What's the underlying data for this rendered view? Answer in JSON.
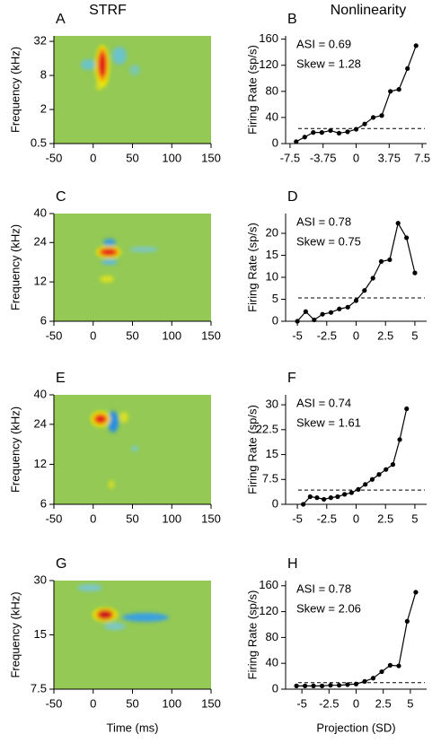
{
  "chart_data": [
    {
      "type": "heatmap",
      "panel": "A",
      "title": "STRF",
      "ylabel": "Frequency (kHz)",
      "ylog": true,
      "xlim": [
        -50,
        150
      ],
      "xticks": [
        -50,
        0,
        50,
        100,
        150
      ],
      "ylim": [
        0.5,
        40
      ],
      "yticks": [
        0.5,
        2,
        8,
        32
      ]
    },
    {
      "type": "line",
      "panel": "B",
      "title": "Nonlinearity",
      "ylabel": "Firing Rate (sp/s)",
      "annotations": [
        "ASI = 0.69",
        "Skew = 1.28"
      ],
      "xlim": [
        -8,
        8
      ],
      "xticks": [
        -7.5,
        -3.75,
        0,
        3.75,
        7.5
      ],
      "ylim": [
        0,
        165
      ],
      "yticks": [
        0,
        40,
        80,
        120,
        160
      ],
      "baseline": 23,
      "color": "#000000",
      "x": [
        -6.8,
        -5.83,
        -4.86,
        -3.89,
        -2.91,
        -1.94,
        -0.97,
        0,
        0.97,
        1.94,
        2.91,
        3.89,
        4.86,
        5.83,
        6.8
      ],
      "values": [
        3,
        10,
        17,
        17,
        20,
        16,
        18,
        22,
        30,
        40,
        43,
        80,
        83,
        115,
        150
      ]
    },
    {
      "type": "heatmap",
      "panel": "C",
      "ylabel": "Frequency (kHz)",
      "ylog": true,
      "xlim": [
        -50,
        150
      ],
      "xticks": [
        -50,
        0,
        50,
        100,
        150
      ],
      "ylim": [
        6,
        40
      ],
      "yticks": [
        6,
        12,
        24,
        40
      ]
    },
    {
      "type": "line",
      "panel": "D",
      "ylabel": "Firing Rate (sp/s)",
      "annotations": [
        "ASI = 0.78",
        "Skew = 0.75"
      ],
      "xlim": [
        -6,
        6
      ],
      "xticks": [
        -5,
        -2.5,
        0,
        2.5,
        5
      ],
      "ylim": [
        0,
        24.5
      ],
      "yticks": [
        0,
        5,
        10,
        15,
        20
      ],
      "baseline": 5.3,
      "color": "#000000",
      "x": [
        -5,
        -4.29,
        -3.57,
        -2.86,
        -2.14,
        -1.43,
        -0.71,
        0,
        0.71,
        1.43,
        2.14,
        2.86,
        3.57,
        4.29,
        5
      ],
      "values": [
        0,
        2.2,
        0.3,
        1.6,
        2,
        2.8,
        3.2,
        4.7,
        7,
        9.8,
        13.6,
        14,
        22.3,
        19,
        11
      ]
    },
    {
      "type": "heatmap",
      "panel": "E",
      "ylabel": "Frequency (kHz)",
      "ylog": true,
      "xlim": [
        -50,
        150
      ],
      "xticks": [
        -50,
        0,
        50,
        100,
        150
      ],
      "ylim": [
        6,
        40
      ],
      "yticks": [
        6,
        12,
        24,
        40
      ]
    },
    {
      "type": "line",
      "panel": "F",
      "ylabel": "Firing Rate (sp/s)",
      "annotations": [
        "ASI = 0.74",
        "Skew = 1.61"
      ],
      "xlim": [
        -6,
        6
      ],
      "xticks": [
        -5,
        -2.5,
        0,
        2.5,
        5
      ],
      "ylim": [
        0,
        33
      ],
      "yticks": [
        0,
        7.5,
        15,
        22.5,
        30
      ],
      "baseline": 4.3,
      "color": "#000000",
      "x": [
        -4.5,
        -3.91,
        -3.33,
        -2.74,
        -2.15,
        -1.57,
        -0.98,
        -0.39,
        0.19,
        0.78,
        1.37,
        1.95,
        2.54,
        3.13,
        3.71,
        4.3
      ],
      "values": [
        0,
        2.3,
        2,
        1.5,
        2,
        2.3,
        3,
        3.5,
        4.5,
        6,
        7.5,
        9,
        10.5,
        12,
        19.5,
        28.8
      ]
    },
    {
      "type": "heatmap",
      "panel": "G",
      "ylabel": "Frequency (kHz)",
      "xlabel": "Time (ms)",
      "ylog": true,
      "xlim": [
        -50,
        150
      ],
      "xticks": [
        -50,
        0,
        50,
        100,
        150
      ],
      "ylim": [
        7.5,
        30
      ],
      "yticks": [
        7.5,
        15,
        30
      ]
    },
    {
      "type": "line",
      "panel": "H",
      "ylabel": "Firing Rate (sp/s)",
      "xlabel": "Projection (SD)",
      "annotations": [
        "ASI = 0.78",
        "Skew = 2.06"
      ],
      "xlim": [
        -6.5,
        6.5
      ],
      "xticks": [
        -5,
        -2.5,
        0,
        2.5,
        5
      ],
      "ylim": [
        0,
        168
      ],
      "yticks": [
        0,
        40,
        80,
        120,
        160
      ],
      "baseline": 10,
      "color": "#000000",
      "x": [
        -5.5,
        -4.71,
        -3.93,
        -3.14,
        -2.36,
        -1.57,
        -0.79,
        0,
        0.79,
        1.57,
        2.36,
        3.14,
        3.93,
        4.71,
        5.5
      ],
      "values": [
        5,
        5,
        5,
        5,
        6,
        6,
        7,
        8,
        12,
        17,
        27,
        37,
        36,
        105,
        150
      ]
    }
  ]
}
